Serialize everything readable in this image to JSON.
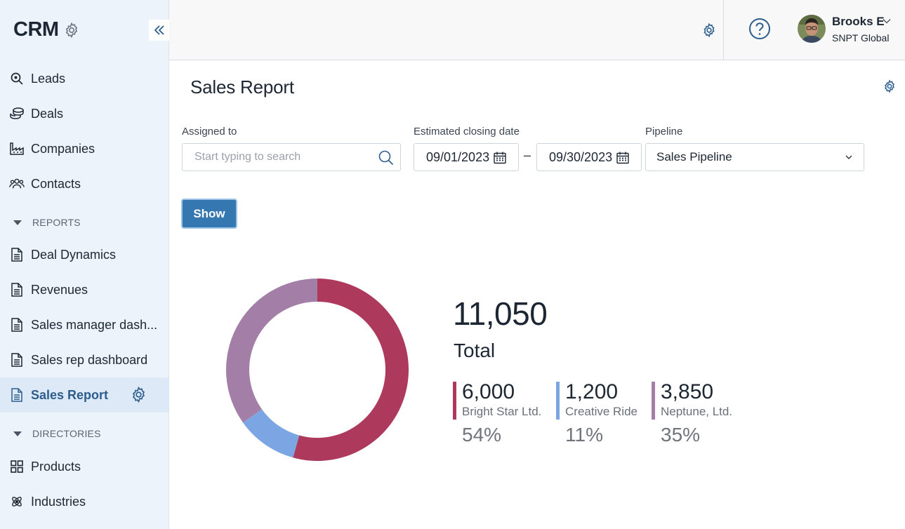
{
  "app": {
    "title": "CRM"
  },
  "sidebar": {
    "items": [
      {
        "label": "Leads",
        "icon": "search-icon"
      },
      {
        "label": "Deals",
        "icon": "coins-icon"
      },
      {
        "label": "Companies",
        "icon": "factory-icon"
      },
      {
        "label": "Contacts",
        "icon": "people-icon"
      }
    ],
    "reports": {
      "heading": "REPORTS",
      "items": [
        {
          "label": "Deal Dynamics",
          "icon": "document-icon"
        },
        {
          "label": "Revenues",
          "icon": "document-icon"
        },
        {
          "label": "Sales manager dash...",
          "icon": "document-icon"
        },
        {
          "label": "Sales rep dashboard",
          "icon": "document-icon"
        },
        {
          "label": "Sales Report",
          "icon": "document-icon",
          "active": true
        }
      ]
    },
    "directories": {
      "heading": "DIRECTORIES",
      "items": [
        {
          "label": "Products",
          "icon": "grid-icon"
        },
        {
          "label": "Industries",
          "icon": "atom-icon"
        }
      ]
    }
  },
  "user": {
    "name": "Brooks E",
    "org": "SNPT Global"
  },
  "page": {
    "title": "Sales Report"
  },
  "filters": {
    "assigned": {
      "label": "Assigned to",
      "placeholder": "Start typing to search",
      "value": ""
    },
    "closing_date": {
      "label": "Estimated closing date",
      "from": "09/01/2023",
      "to": "09/30/2023",
      "separator": "–"
    },
    "pipeline": {
      "label": "Pipeline",
      "value": "Sales Pipeline"
    },
    "show_label": "Show"
  },
  "summary": {
    "total_value": "11,050",
    "total_label": "Total"
  },
  "chart_data": {
    "type": "pie",
    "style": "donut",
    "total": 11050,
    "series": [
      {
        "name": "Bright Star Ltd.",
        "value": 6000,
        "value_label": "6,000",
        "percent_label": "54%",
        "color": "#ad3a5c"
      },
      {
        "name": "Creative Ride",
        "value": 1200,
        "value_label": "1,200",
        "percent_label": "11%",
        "color": "#7ba5e3"
      },
      {
        "name": "Neptune, Ltd.",
        "value": 3850,
        "value_label": "3,850",
        "percent_label": "35%",
        "color": "#a37fa8"
      }
    ]
  },
  "colors": {
    "accent": "#3577b0",
    "sidebar_bg": "#edf3fb",
    "active_text": "#2d5d8c",
    "icon": "#2d5d8c"
  }
}
